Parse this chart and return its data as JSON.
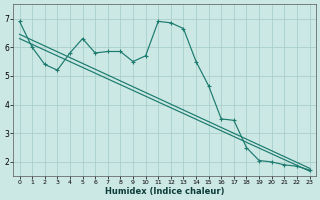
{
  "bg_color": "#cce8e4",
  "grid_color": "#aacfcb",
  "line_color": "#1a7a6e",
  "xlabel": "Humidex (Indice chaleur)",
  "ylim": [
    1.5,
    7.5
  ],
  "xlim": [
    -0.5,
    23.5
  ],
  "yticks": [
    2,
    3,
    4,
    5,
    6,
    7
  ],
  "xticks": [
    0,
    1,
    2,
    3,
    4,
    5,
    6,
    7,
    8,
    9,
    10,
    11,
    12,
    13,
    14,
    15,
    16,
    17,
    18,
    19,
    20,
    21,
    22,
    23
  ],
  "curve1_x": [
    0,
    1,
    2,
    3,
    4,
    5,
    6,
    7,
    8,
    9,
    10,
    11,
    12,
    13,
    14,
    15,
    16,
    17,
    18,
    19,
    20,
    21,
    22,
    23
  ],
  "curve1_y": [
    6.9,
    6.0,
    5.4,
    5.2,
    5.8,
    6.3,
    5.8,
    5.85,
    5.85,
    5.5,
    5.7,
    6.9,
    6.85,
    6.65,
    5.5,
    4.65,
    3.5,
    3.45,
    2.5,
    2.05,
    2.0,
    1.9,
    1.85,
    1.72
  ],
  "curve2_x": [
    0,
    23
  ],
  "curve2_y": [
    6.45,
    1.78
  ],
  "curve3_x": [
    0,
    23
  ],
  "curve3_y": [
    6.3,
    1.68
  ]
}
